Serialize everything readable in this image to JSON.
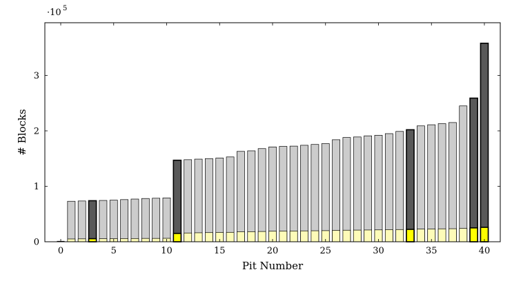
{
  "chart_data": {
    "type": "bar",
    "title": "",
    "xlabel": "Pit Number",
    "ylabel": "# Blocks",
    "scale_note": "·10",
    "scale_exponent": "5",
    "xlim": [
      -1.5,
      41.5
    ],
    "ylim": [
      0,
      395000
    ],
    "xticks": [
      0,
      5,
      10,
      15,
      20,
      25,
      30,
      35,
      40
    ],
    "yticks": [
      0,
      100000,
      200000,
      300000
    ],
    "ytick_labels": [
      "0",
      "1",
      "2",
      "3"
    ],
    "grid": false,
    "legend": "none",
    "x": [
      1,
      2,
      3,
      4,
      5,
      6,
      7,
      8,
      9,
      10,
      11,
      12,
      13,
      14,
      15,
      16,
      17,
      18,
      19,
      20,
      21,
      22,
      23,
      24,
      25,
      26,
      27,
      28,
      29,
      30,
      31,
      32,
      33,
      34,
      35,
      36,
      37,
      38,
      39,
      40
    ],
    "series": [
      {
        "role": "total",
        "values": [
          73000,
          73500,
          74000,
          74500,
          75000,
          76000,
          77000,
          78000,
          78500,
          79000,
          147000,
          148000,
          149000,
          150000,
          151000,
          153000,
          163000,
          164000,
          168000,
          171000,
          172000,
          172500,
          174000,
          175500,
          177000,
          184000,
          188000,
          189000,
          191000,
          192000,
          195000,
          199000,
          202000,
          209000,
          211000,
          213000,
          215000,
          245000,
          259000,
          358000
        ]
      },
      {
        "role": "subset",
        "values": [
          5000,
          5200,
          5500,
          5500,
          5600,
          5700,
          5800,
          6000,
          6000,
          6200,
          15000,
          15800,
          16200,
          16500,
          16800,
          17000,
          18000,
          18200,
          18500,
          19000,
          19200,
          19400,
          19600,
          19800,
          20000,
          20500,
          20800,
          21000,
          21200,
          21400,
          21800,
          22000,
          22300,
          22800,
          23000,
          23300,
          23500,
          24000,
          25000,
          26000
        ]
      }
    ],
    "highlighted_x": [
      3,
      11,
      33,
      39,
      40
    ],
    "colors": {
      "total_normal": "#cccccc",
      "total_highlight": "#595959",
      "subset_normal": "#fdfbb8",
      "subset_highlight": "#ffff00",
      "stroke": "#000000"
    }
  }
}
